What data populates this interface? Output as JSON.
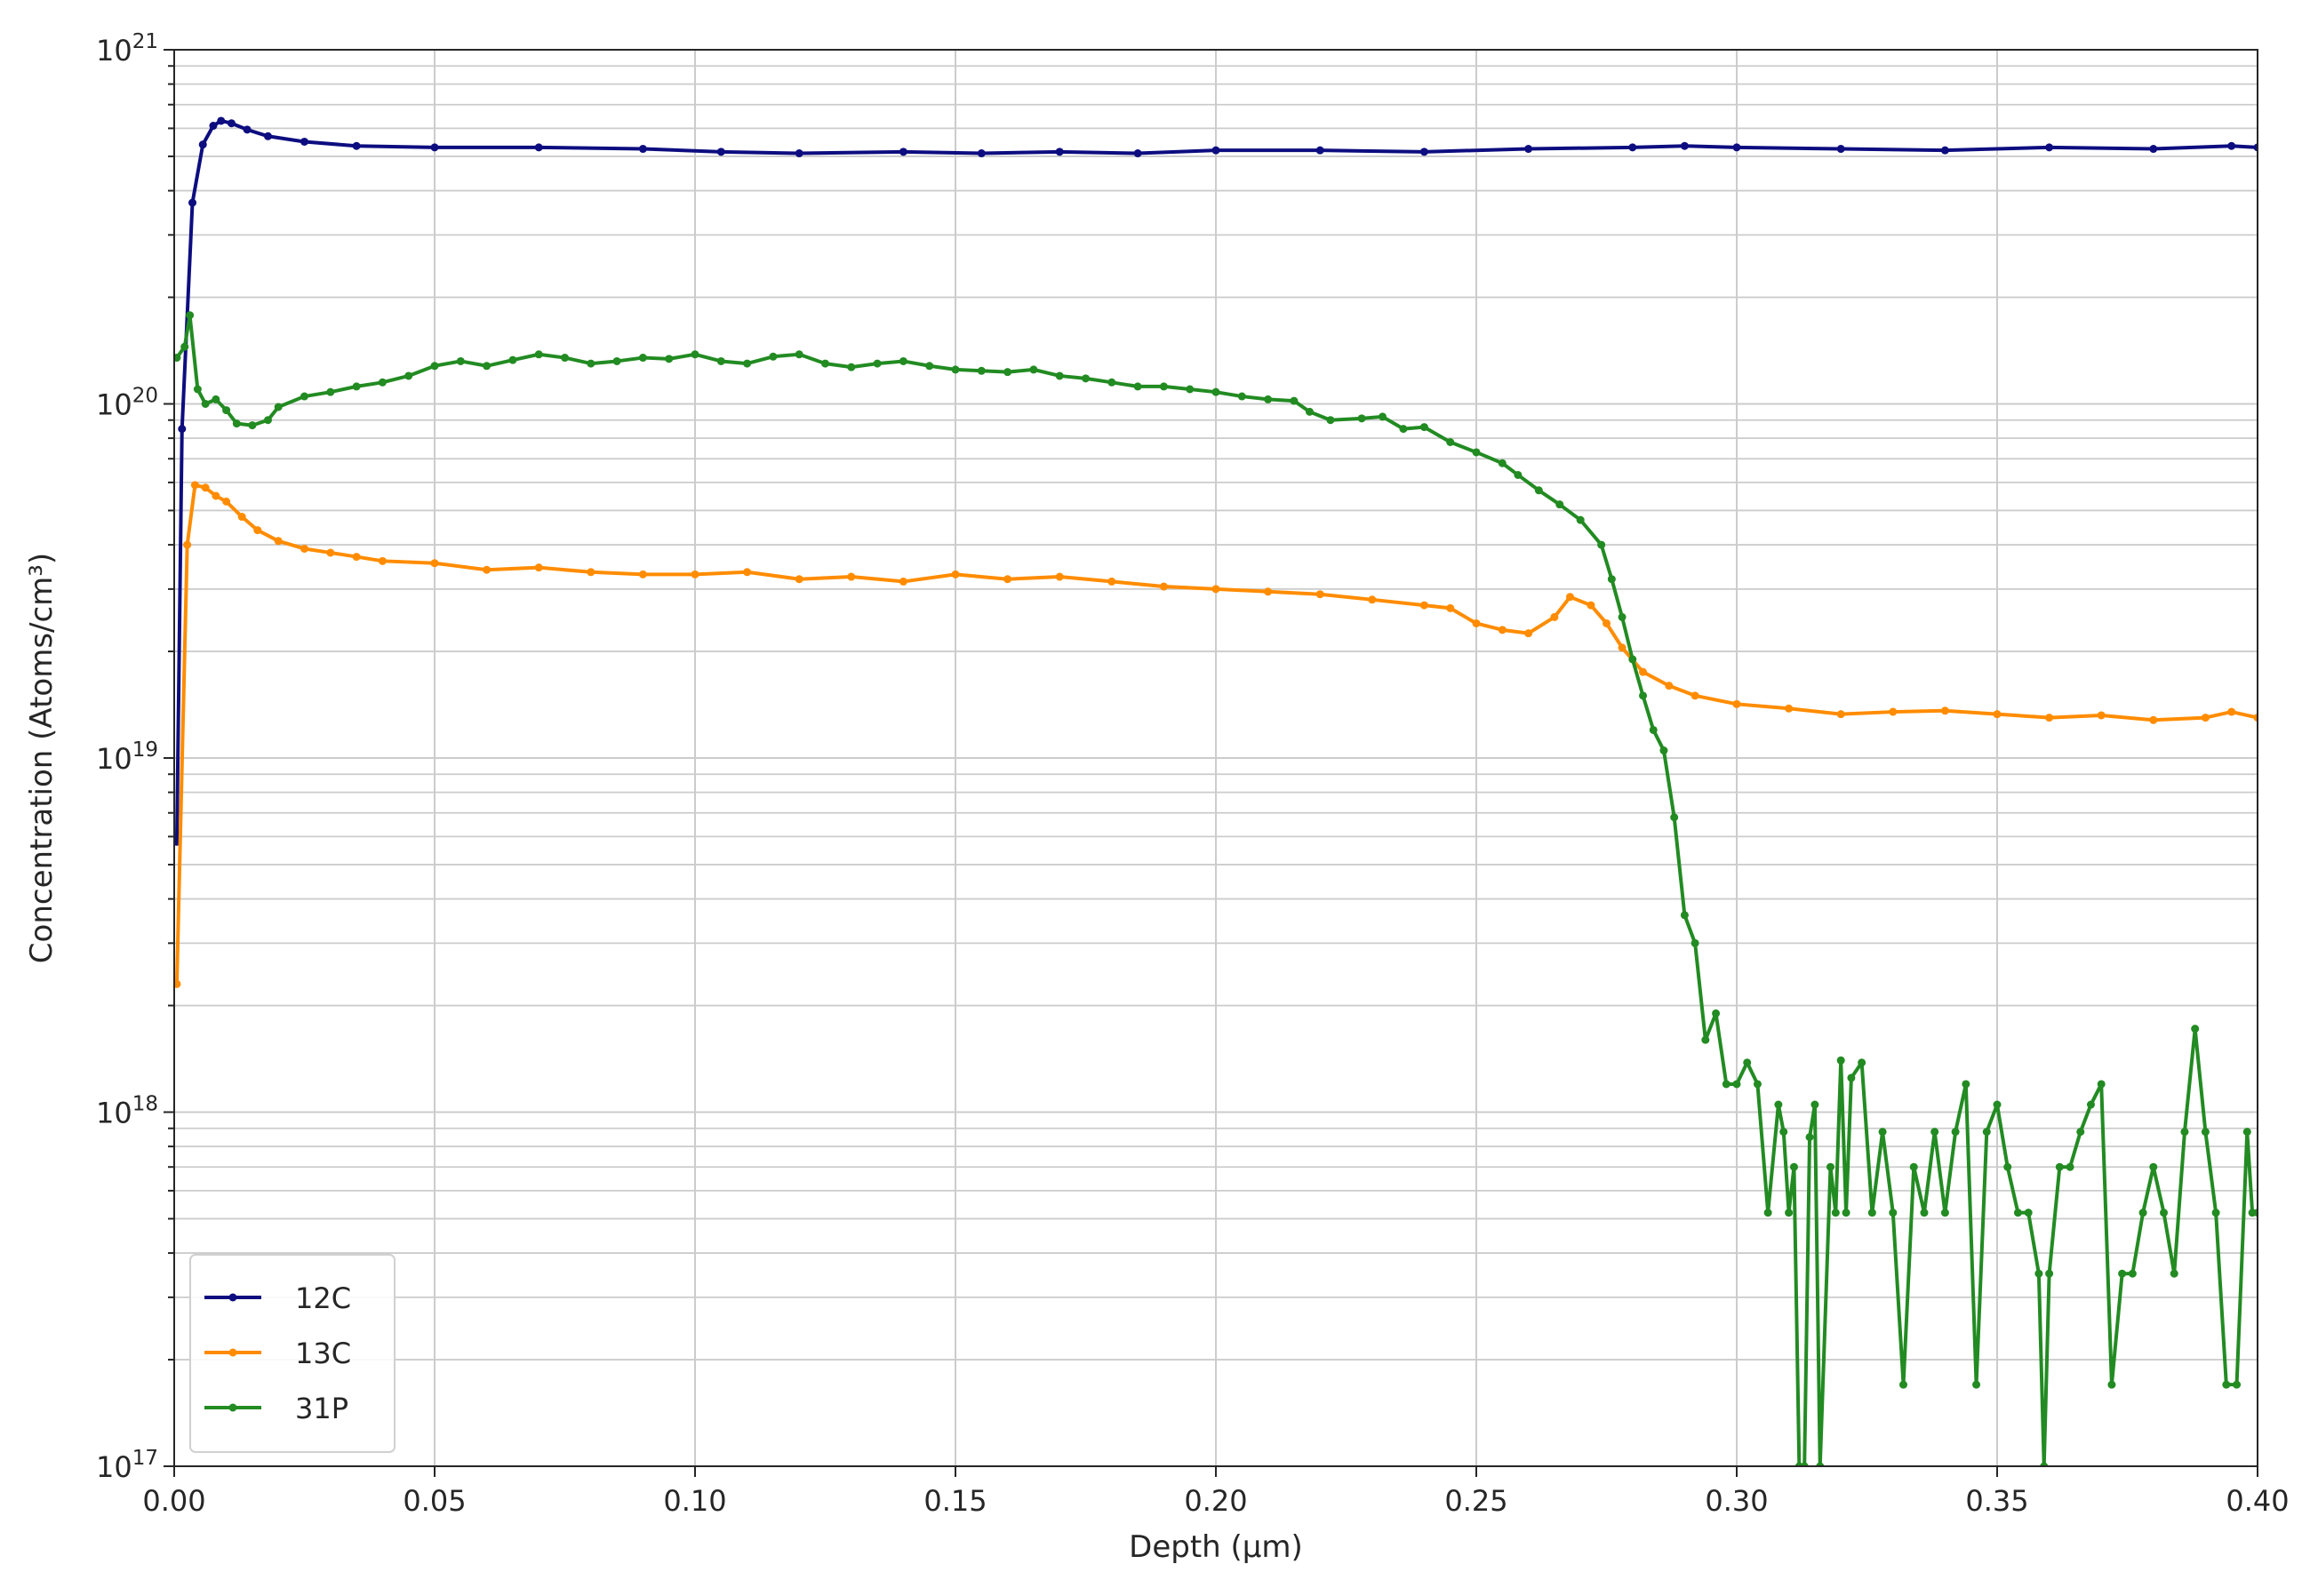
{
  "chart_data": {
    "type": "line",
    "title": "",
    "xlabel": "Depth (μm)",
    "ylabel": "Concentration (Atoms/cm³)",
    "xlim": [
      0.0,
      0.4
    ],
    "ylim": [
      1e+17,
      1e+21
    ],
    "yscale": "log",
    "grid": true,
    "legend_position": "lower-left",
    "x_ticks": [
      "0.00",
      "0.05",
      "0.10",
      "0.15",
      "0.20",
      "0.25",
      "0.30",
      "0.35",
      "0.40"
    ],
    "y_ticks": [
      {
        "base": "10",
        "exp": "17",
        "value": 1e+17
      },
      {
        "base": "10",
        "exp": "18",
        "value": 1e+18
      },
      {
        "base": "10",
        "exp": "19",
        "value": 1e+19
      },
      {
        "base": "10",
        "exp": "20",
        "value": 1e+20
      },
      {
        "base": "10",
        "exp": "21",
        "value": 1e+21
      }
    ],
    "series": [
      {
        "name": "12C",
        "color": "#0d0d80",
        "points": [
          [
            0.0005,
            5.8e+18
          ],
          [
            0.0015,
            8.5e+19
          ],
          [
            0.0035,
            3.7e+20
          ],
          [
            0.0055,
            5.4e+20
          ],
          [
            0.0075,
            6.1e+20
          ],
          [
            0.009,
            6.3e+20
          ],
          [
            0.011,
            6.2e+20
          ],
          [
            0.014,
            5.95e+20
          ],
          [
            0.018,
            5.7e+20
          ],
          [
            0.025,
            5.5e+20
          ],
          [
            0.035,
            5.35e+20
          ],
          [
            0.05,
            5.3e+20
          ],
          [
            0.07,
            5.3e+20
          ],
          [
            0.09,
            5.25e+20
          ],
          [
            0.105,
            5.15e+20
          ],
          [
            0.12,
            5.1e+20
          ],
          [
            0.14,
            5.15e+20
          ],
          [
            0.155,
            5.1e+20
          ],
          [
            0.17,
            5.15e+20
          ],
          [
            0.185,
            5.1e+20
          ],
          [
            0.2,
            5.2e+20
          ],
          [
            0.22,
            5.2e+20
          ],
          [
            0.24,
            5.15e+20
          ],
          [
            0.26,
            5.25e+20
          ],
          [
            0.28,
            5.3e+20
          ],
          [
            0.29,
            5.35e+20
          ],
          [
            0.3,
            5.3e+20
          ],
          [
            0.32,
            5.25e+20
          ],
          [
            0.34,
            5.2e+20
          ],
          [
            0.36,
            5.3e+20
          ],
          [
            0.38,
            5.25e+20
          ],
          [
            0.395,
            5.35e+20
          ],
          [
            0.4,
            5.3e+20
          ]
        ]
      },
      {
        "name": "13C",
        "color": "#ff8c00",
        "points": [
          [
            0.0005,
            2.3e+18
          ],
          [
            0.0025,
            4e+19
          ],
          [
            0.004,
            5.9e+19
          ],
          [
            0.006,
            5.8e+19
          ],
          [
            0.008,
            5.5e+19
          ],
          [
            0.01,
            5.3e+19
          ],
          [
            0.013,
            4.8e+19
          ],
          [
            0.016,
            4.4e+19
          ],
          [
            0.02,
            4.1e+19
          ],
          [
            0.025,
            3.9e+19
          ],
          [
            0.03,
            3.8e+19
          ],
          [
            0.035,
            3.7e+19
          ],
          [
            0.04,
            3.6e+19
          ],
          [
            0.05,
            3.55e+19
          ],
          [
            0.06,
            3.4e+19
          ],
          [
            0.07,
            3.45e+19
          ],
          [
            0.08,
            3.35e+19
          ],
          [
            0.09,
            3.3e+19
          ],
          [
            0.1,
            3.3e+19
          ],
          [
            0.11,
            3.35e+19
          ],
          [
            0.12,
            3.2e+19
          ],
          [
            0.13,
            3.25e+19
          ],
          [
            0.14,
            3.15e+19
          ],
          [
            0.15,
            3.3e+19
          ],
          [
            0.16,
            3.2e+19
          ],
          [
            0.17,
            3.25e+19
          ],
          [
            0.18,
            3.15e+19
          ],
          [
            0.19,
            3.05e+19
          ],
          [
            0.2,
            3e+19
          ],
          [
            0.21,
            2.95e+19
          ],
          [
            0.22,
            2.9e+19
          ],
          [
            0.23,
            2.8e+19
          ],
          [
            0.24,
            2.7e+19
          ],
          [
            0.245,
            2.65e+19
          ],
          [
            0.25,
            2.4e+19
          ],
          [
            0.255,
            2.3e+19
          ],
          [
            0.26,
            2.25e+19
          ],
          [
            0.265,
            2.5e+19
          ],
          [
            0.268,
            2.85e+19
          ],
          [
            0.272,
            2.7e+19
          ],
          [
            0.275,
            2.4e+19
          ],
          [
            0.278,
            2.05e+19
          ],
          [
            0.282,
            1.75e+19
          ],
          [
            0.287,
            1.6e+19
          ],
          [
            0.292,
            1.5e+19
          ],
          [
            0.3,
            1.42e+19
          ],
          [
            0.31,
            1.38e+19
          ],
          [
            0.32,
            1.33e+19
          ],
          [
            0.33,
            1.35e+19
          ],
          [
            0.34,
            1.36e+19
          ],
          [
            0.35,
            1.33e+19
          ],
          [
            0.36,
            1.3e+19
          ],
          [
            0.37,
            1.32e+19
          ],
          [
            0.38,
            1.28e+19
          ],
          [
            0.39,
            1.3e+19
          ],
          [
            0.395,
            1.35e+19
          ],
          [
            0.4,
            1.3e+19
          ]
        ]
      },
      {
        "name": "31P",
        "color": "#228b22",
        "points": [
          [
            0.0005,
            1.35e+20
          ],
          [
            0.002,
            1.45e+20
          ],
          [
            0.003,
            1.78e+20
          ],
          [
            0.0045,
            1.1e+20
          ],
          [
            0.006,
            1e+20
          ],
          [
            0.008,
            1.03e+20
          ],
          [
            0.01,
            9.6e+19
          ],
          [
            0.012,
            8.8e+19
          ],
          [
            0.015,
            8.7e+19
          ],
          [
            0.018,
            9e+19
          ],
          [
            0.02,
            9.8e+19
          ],
          [
            0.025,
            1.05e+20
          ],
          [
            0.03,
            1.08e+20
          ],
          [
            0.035,
            1.12e+20
          ],
          [
            0.04,
            1.15e+20
          ],
          [
            0.045,
            1.2e+20
          ],
          [
            0.05,
            1.28e+20
          ],
          [
            0.055,
            1.32e+20
          ],
          [
            0.06,
            1.28e+20
          ],
          [
            0.065,
            1.33e+20
          ],
          [
            0.07,
            1.38e+20
          ],
          [
            0.075,
            1.35e+20
          ],
          [
            0.08,
            1.3e+20
          ],
          [
            0.085,
            1.32e+20
          ],
          [
            0.09,
            1.35e+20
          ],
          [
            0.095,
            1.34e+20
          ],
          [
            0.1,
            1.38e+20
          ],
          [
            0.105,
            1.32e+20
          ],
          [
            0.11,
            1.3e+20
          ],
          [
            0.115,
            1.36e+20
          ],
          [
            0.12,
            1.38e+20
          ],
          [
            0.125,
            1.3e+20
          ],
          [
            0.13,
            1.27e+20
          ],
          [
            0.135,
            1.3e+20
          ],
          [
            0.14,
            1.32e+20
          ],
          [
            0.145,
            1.28e+20
          ],
          [
            0.15,
            1.25e+20
          ],
          [
            0.155,
            1.24e+20
          ],
          [
            0.16,
            1.23e+20
          ],
          [
            0.165,
            1.25e+20
          ],
          [
            0.17,
            1.2e+20
          ],
          [
            0.175,
            1.18e+20
          ],
          [
            0.18,
            1.15e+20
          ],
          [
            0.185,
            1.12e+20
          ],
          [
            0.19,
            1.12e+20
          ],
          [
            0.195,
            1.1e+20
          ],
          [
            0.2,
            1.08e+20
          ],
          [
            0.205,
            1.05e+20
          ],
          [
            0.21,
            1.03e+20
          ],
          [
            0.215,
            1.02e+20
          ],
          [
            0.218,
            9.5e+19
          ],
          [
            0.222,
            9e+19
          ],
          [
            0.228,
            9.1e+19
          ],
          [
            0.232,
            9.2e+19
          ],
          [
            0.236,
            8.5e+19
          ],
          [
            0.24,
            8.6e+19
          ],
          [
            0.245,
            7.8e+19
          ],
          [
            0.25,
            7.3e+19
          ],
          [
            0.255,
            6.8e+19
          ],
          [
            0.258,
            6.3e+19
          ],
          [
            0.262,
            5.7e+19
          ],
          [
            0.266,
            5.2e+19
          ],
          [
            0.27,
            4.7e+19
          ],
          [
            0.274,
            4e+19
          ],
          [
            0.276,
            3.2e+19
          ],
          [
            0.278,
            2.5e+19
          ],
          [
            0.28,
            1.9e+19
          ],
          [
            0.282,
            1.5e+19
          ],
          [
            0.284,
            1.2e+19
          ],
          [
            0.286,
            1.05e+19
          ],
          [
            0.288,
            6.8e+18
          ],
          [
            0.29,
            3.6e+18
          ],
          [
            0.292,
            3e+18
          ],
          [
            0.294,
            1.6e+18
          ],
          [
            0.296,
            1.9e+18
          ],
          [
            0.298,
            1.2e+18
          ],
          [
            0.3,
            1.2e+18
          ],
          [
            0.302,
            1.38e+18
          ],
          [
            0.304,
            1.2e+18
          ],
          [
            0.306,
            5.2e+17
          ],
          [
            0.308,
            1.05e+18
          ],
          [
            0.309,
            8.8e+17
          ],
          [
            0.31,
            5.2e+17
          ],
          [
            0.311,
            7e+17
          ],
          [
            0.312,
            1e+17
          ],
          [
            0.313,
            1e+17
          ],
          [
            0.314,
            8.5e+17
          ],
          [
            0.315,
            1.05e+18
          ],
          [
            0.316,
            1e+17
          ],
          [
            0.318,
            7e+17
          ],
          [
            0.319,
            5.2e+17
          ],
          [
            0.32,
            1.4e+18
          ],
          [
            0.321,
            5.2e+17
          ],
          [
            0.322,
            1.25e+18
          ],
          [
            0.324,
            1.38e+18
          ],
          [
            0.326,
            5.2e+17
          ],
          [
            0.328,
            8.8e+17
          ],
          [
            0.33,
            5.2e+17
          ],
          [
            0.332,
            1.7e+17
          ],
          [
            0.334,
            7e+17
          ],
          [
            0.336,
            5.2e+17
          ],
          [
            0.338,
            8.8e+17
          ],
          [
            0.34,
            5.2e+17
          ],
          [
            0.342,
            8.8e+17
          ],
          [
            0.344,
            1.2e+18
          ],
          [
            0.346,
            1.7e+17
          ],
          [
            0.348,
            8.8e+17
          ],
          [
            0.35,
            1.05e+18
          ],
          [
            0.352,
            7e+17
          ],
          [
            0.354,
            5.2e+17
          ],
          [
            0.356,
            5.2e+17
          ],
          [
            0.358,
            3.5e+17
          ],
          [
            0.359,
            1e+17
          ],
          [
            0.36,
            3.5e+17
          ],
          [
            0.362,
            7e+17
          ],
          [
            0.364,
            7e+17
          ],
          [
            0.366,
            8.8e+17
          ],
          [
            0.368,
            1.05e+18
          ],
          [
            0.37,
            1.2e+18
          ],
          [
            0.372,
            1.7e+17
          ],
          [
            0.374,
            3.5e+17
          ],
          [
            0.376,
            3.5e+17
          ],
          [
            0.378,
            5.2e+17
          ],
          [
            0.38,
            7e+17
          ],
          [
            0.382,
            5.2e+17
          ],
          [
            0.384,
            3.5e+17
          ],
          [
            0.386,
            8.8e+17
          ],
          [
            0.388,
            1.72e+18
          ],
          [
            0.39,
            8.8e+17
          ],
          [
            0.392,
            5.2e+17
          ],
          [
            0.394,
            1.7e+17
          ],
          [
            0.396,
            1.7e+17
          ],
          [
            0.398,
            8.8e+17
          ],
          [
            0.399,
            5.2e+17
          ],
          [
            0.4,
            5.2e+17
          ]
        ]
      }
    ]
  }
}
